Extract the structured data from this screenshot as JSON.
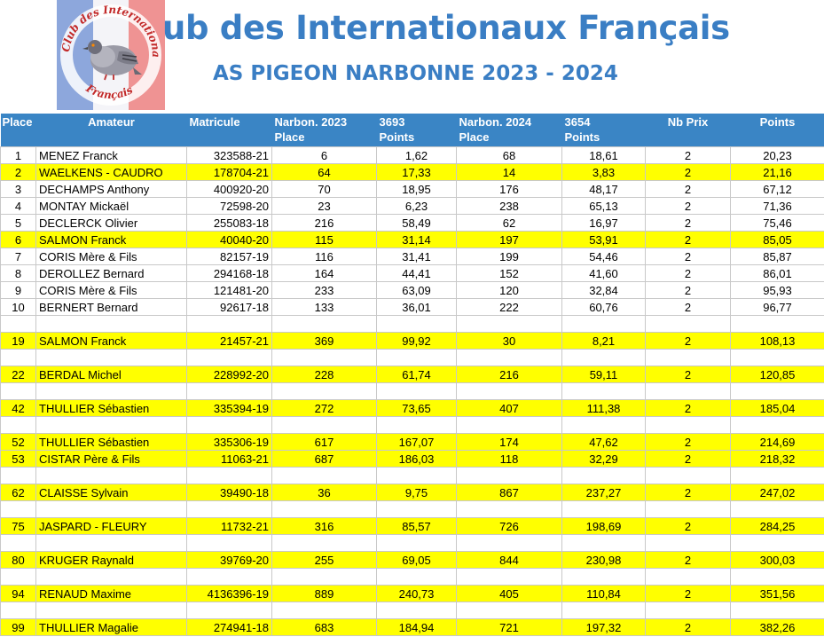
{
  "header": {
    "title": "ub des Internationaux Français",
    "subtitle": "AS PIGEON NARBONNE 2023 - 2024",
    "logo_text": "Club des Internationaux Français"
  },
  "table": {
    "columns": [
      {
        "line1": "Place",
        "line2": ""
      },
      {
        "line1": "Amateur",
        "line2": ""
      },
      {
        "line1": "Matricule",
        "line2": ""
      },
      {
        "line1": "Narbon. 2023",
        "line2": "Place"
      },
      {
        "line1": "3693",
        "line2": "Points"
      },
      {
        "line1": "Narbon. 2024",
        "line2": "Place"
      },
      {
        "line1": "3654",
        "line2": "Points"
      },
      {
        "line1": "Nb Prix",
        "line2": ""
      },
      {
        "line1": "Points",
        "line2": ""
      }
    ],
    "rows": [
      {
        "place": "1",
        "amateur": "MENEZ Franck",
        "matricule": "323588-21",
        "p2023": "6",
        "pts2023": "1,62",
        "p2024": "68",
        "pts2024": "18,61",
        "nbprix": "2",
        "points": "20,23",
        "yellow": false
      },
      {
        "place": "2",
        "amateur": "WAELKENS - CAUDRO",
        "matricule": "178704-21",
        "p2023": "64",
        "pts2023": "17,33",
        "p2024": "14",
        "pts2024": "3,83",
        "nbprix": "2",
        "points": "21,16",
        "yellow": true
      },
      {
        "place": "3",
        "amateur": "DECHAMPS Anthony",
        "matricule": "400920-20",
        "p2023": "70",
        "pts2023": "18,95",
        "p2024": "176",
        "pts2024": "48,17",
        "nbprix": "2",
        "points": "67,12",
        "yellow": false
      },
      {
        "place": "4",
        "amateur": "MONTAY Mickaël",
        "matricule": "72598-20",
        "p2023": "23",
        "pts2023": "6,23",
        "p2024": "238",
        "pts2024": "65,13",
        "nbprix": "2",
        "points": "71,36",
        "yellow": false
      },
      {
        "place": "5",
        "amateur": "DECLERCK Olivier",
        "matricule": "255083-18",
        "p2023": "216",
        "pts2023": "58,49",
        "p2024": "62",
        "pts2024": "16,97",
        "nbprix": "2",
        "points": "75,46",
        "yellow": false
      },
      {
        "place": "6",
        "amateur": "SALMON Franck",
        "matricule": "40040-20",
        "p2023": "115",
        "pts2023": "31,14",
        "p2024": "197",
        "pts2024": "53,91",
        "nbprix": "2",
        "points": "85,05",
        "yellow": true
      },
      {
        "place": "7",
        "amateur": "CORIS Mère & Fils",
        "matricule": "82157-19",
        "p2023": "116",
        "pts2023": "31,41",
        "p2024": "199",
        "pts2024": "54,46",
        "nbprix": "2",
        "points": "85,87",
        "yellow": false
      },
      {
        "place": "8",
        "amateur": "DEROLLEZ Bernard",
        "matricule": "294168-18",
        "p2023": "164",
        "pts2023": "44,41",
        "p2024": "152",
        "pts2024": "41,60",
        "nbprix": "2",
        "points": "86,01",
        "yellow": false
      },
      {
        "place": "9",
        "amateur": "CORIS Mère & Fils",
        "matricule": "121481-20",
        "p2023": "233",
        "pts2023": "63,09",
        "p2024": "120",
        "pts2024": "32,84",
        "nbprix": "2",
        "points": "95,93",
        "yellow": false
      },
      {
        "place": "10",
        "amateur": "BERNERT Bernard",
        "matricule": "92617-18",
        "p2023": "133",
        "pts2023": "36,01",
        "p2024": "222",
        "pts2024": "60,76",
        "nbprix": "2",
        "points": "96,77",
        "yellow": false
      },
      {
        "blank": true
      },
      {
        "place": "19",
        "amateur": "SALMON Franck",
        "matricule": "21457-21",
        "p2023": "369",
        "pts2023": "99,92",
        "p2024": "30",
        "pts2024": "8,21",
        "nbprix": "2",
        "points": "108,13",
        "yellow": true
      },
      {
        "blank": true
      },
      {
        "place": "22",
        "amateur": "BERDAL Michel",
        "matricule": "228992-20",
        "p2023": "228",
        "pts2023": "61,74",
        "p2024": "216",
        "pts2024": "59,11",
        "nbprix": "2",
        "points": "120,85",
        "yellow": true
      },
      {
        "blank": true
      },
      {
        "place": "42",
        "amateur": "THULLIER Sébastien",
        "matricule": "335394-19",
        "p2023": "272",
        "pts2023": "73,65",
        "p2024": "407",
        "pts2024": "111,38",
        "nbprix": "2",
        "points": "185,04",
        "yellow": true
      },
      {
        "blank": true
      },
      {
        "place": "52",
        "amateur": "THULLIER Sébastien",
        "matricule": "335306-19",
        "p2023": "617",
        "pts2023": "167,07",
        "p2024": "174",
        "pts2024": "47,62",
        "nbprix": "2",
        "points": "214,69",
        "yellow": true
      },
      {
        "place": "53",
        "amateur": "CISTAR Père & Fils",
        "matricule": "11063-21",
        "p2023": "687",
        "pts2023": "186,03",
        "p2024": "118",
        "pts2024": "32,29",
        "nbprix": "2",
        "points": "218,32",
        "yellow": true
      },
      {
        "blank": true
      },
      {
        "place": "62",
        "amateur": "CLAISSE Sylvain",
        "matricule": "39490-18",
        "p2023": "36",
        "pts2023": "9,75",
        "p2024": "867",
        "pts2024": "237,27",
        "nbprix": "2",
        "points": "247,02",
        "yellow": true
      },
      {
        "blank": true
      },
      {
        "place": "75",
        "amateur": "JASPARD - FLEURY",
        "matricule": "11732-21",
        "p2023": "316",
        "pts2023": "85,57",
        "p2024": "726",
        "pts2024": "198,69",
        "nbprix": "2",
        "points": "284,25",
        "yellow": true
      },
      {
        "blank": true
      },
      {
        "place": "80",
        "amateur": "KRUGER Raynald",
        "matricule": "39769-20",
        "p2023": "255",
        "pts2023": "69,05",
        "p2024": "844",
        "pts2024": "230,98",
        "nbprix": "2",
        "points": "300,03",
        "yellow": true
      },
      {
        "blank": true
      },
      {
        "place": "94",
        "amateur": "RENAUD Maxime",
        "matricule": "4136396-19",
        "p2023": "889",
        "pts2023": "240,73",
        "p2024": "405",
        "pts2024": "110,84",
        "nbprix": "2",
        "points": "351,56",
        "yellow": true
      },
      {
        "blank": true
      },
      {
        "place": "99",
        "amateur": "THULLIER Magalie",
        "matricule": "274941-18",
        "p2023": "683",
        "pts2023": "184,94",
        "p2024": "721",
        "pts2024": "197,32",
        "nbprix": "2",
        "points": "382,26",
        "yellow": true
      }
    ]
  },
  "colors": {
    "title": "#3a7ec4",
    "header_bg": "#3a85c5",
    "highlight": "#ffff00",
    "flag_blue": "#2f5fc0",
    "flag_red": "#e23a3a"
  }
}
